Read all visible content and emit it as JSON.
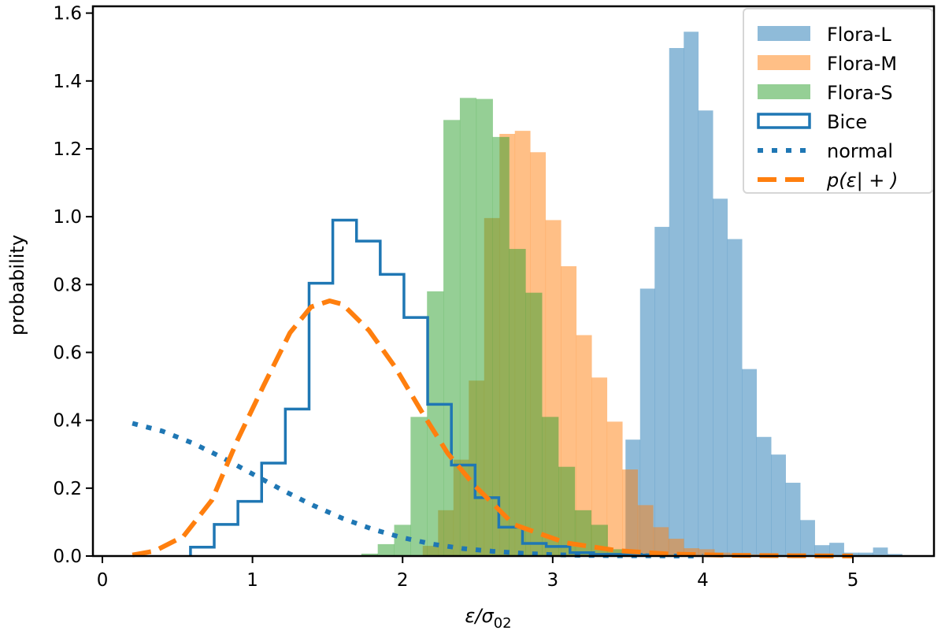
{
  "chart_data": {
    "type": "histogram",
    "xlabel": "ε/σ02",
    "xlabel_main": "ε/σ",
    "xlabel_sub": "02",
    "ylabel": "probability",
    "xlim": [
      -0.063,
      5.54
    ],
    "ylim": [
      0,
      1.62
    ],
    "xticks": [
      0,
      1,
      2,
      3,
      4,
      5
    ],
    "xtick_labels": [
      "0",
      "1",
      "2",
      "3",
      "4",
      "5"
    ],
    "yticks": [
      0,
      0.2,
      0.4,
      0.6,
      0.8,
      1.0,
      1.2,
      1.4,
      1.6
    ],
    "ytick_labels": [
      "0.0",
      "0.2",
      "0.4",
      "0.6",
      "0.8",
      "1.0",
      "1.2",
      "1.4",
      "1.6"
    ],
    "grid": false,
    "legend_position": "top-right",
    "series": [
      {
        "name": "Flora-L",
        "kind": "filled-histogram",
        "color": "#1f77b4",
        "alpha": 0.5,
        "bin_start": 3.485,
        "bin_width": 0.097,
        "values": [
          0.343,
          0.788,
          0.97,
          1.497,
          1.545,
          1.313,
          1.053,
          0.934,
          0.551,
          0.351,
          0.299,
          0.216,
          0.106,
          0.032,
          0.039,
          0.01,
          0.01,
          0.025,
          0.006
        ]
      },
      {
        "name": "Flora-M",
        "kind": "filled-histogram",
        "color": "#ff7f0e",
        "alpha": 0.5,
        "bin_start": 2.134,
        "bin_width": 0.1023,
        "values": [
          0.03,
          0.135,
          0.284,
          0.517,
          0.996,
          1.244,
          1.253,
          1.19,
          0.99,
          0.854,
          0.651,
          0.526,
          0.396,
          0.255,
          0.15,
          0.085,
          0.051,
          0.023,
          0.02,
          0.01,
          0.008,
          0.005,
          0.004,
          0.003,
          0.002
        ]
      },
      {
        "name": "Flora-S",
        "kind": "filled-histogram",
        "color": "#2ca02c",
        "alpha": 0.5,
        "bin_start": 1.725,
        "bin_width": 0.1094,
        "values": [
          0.007,
          0.035,
          0.092,
          0.41,
          0.78,
          1.285,
          1.35,
          1.347,
          1.235,
          0.905,
          0.776,
          0.41,
          0.263,
          0.135,
          0.092,
          0.02,
          0.01,
          0.005,
          0.003
        ]
      },
      {
        "name": "Bice",
        "kind": "step-histogram",
        "color": "#1f77b4",
        "bin_start": 0.587,
        "bin_width": 0.158,
        "values": [
          0.026,
          0.093,
          0.161,
          0.274,
          0.433,
          0.804,
          0.99,
          0.928,
          0.83,
          0.703,
          0.447,
          0.268,
          0.172,
          0.085,
          0.037,
          0.028,
          0.01,
          0.005,
          0.005,
          0.003
        ]
      },
      {
        "name": "normal",
        "kind": "dotted-line",
        "color": "#1f77b4",
        "x": [
          0.2,
          0.4,
          0.6,
          0.8,
          1.0,
          1.2,
          1.4,
          1.6,
          1.8,
          2.0,
          2.2,
          2.4,
          2.6,
          2.8,
          3.0,
          3.2,
          3.4,
          3.6,
          3.8,
          4.0
        ],
        "y": [
          0.391,
          0.368,
          0.333,
          0.29,
          0.242,
          0.194,
          0.15,
          0.111,
          0.079,
          0.054,
          0.035,
          0.022,
          0.014,
          0.008,
          0.004,
          0.002,
          0.001,
          0.001,
          0.0,
          0.0
        ]
      },
      {
        "name": "p(ε| + )",
        "kind": "dashed-line",
        "color": "#ff7f0e",
        "x": [
          0.2,
          0.35,
          0.54,
          0.73,
          0.9,
          1.075,
          1.25,
          1.39,
          1.514,
          1.6,
          1.776,
          1.95,
          2.125,
          2.3,
          2.475,
          2.74,
          3.087,
          3.43,
          3.77,
          4.2,
          4.6,
          5.0
        ],
        "y": [
          0.003,
          0.015,
          0.058,
          0.165,
          0.342,
          0.503,
          0.658,
          0.734,
          0.752,
          0.742,
          0.665,
          0.557,
          0.427,
          0.303,
          0.21,
          0.093,
          0.039,
          0.016,
          0.006,
          0.002,
          0.001,
          0.0
        ]
      }
    ],
    "legend_entries": [
      "Flora-L",
      "Flora-M",
      "Flora-S",
      "Bice",
      "normal",
      "p(ε| + )"
    ]
  }
}
